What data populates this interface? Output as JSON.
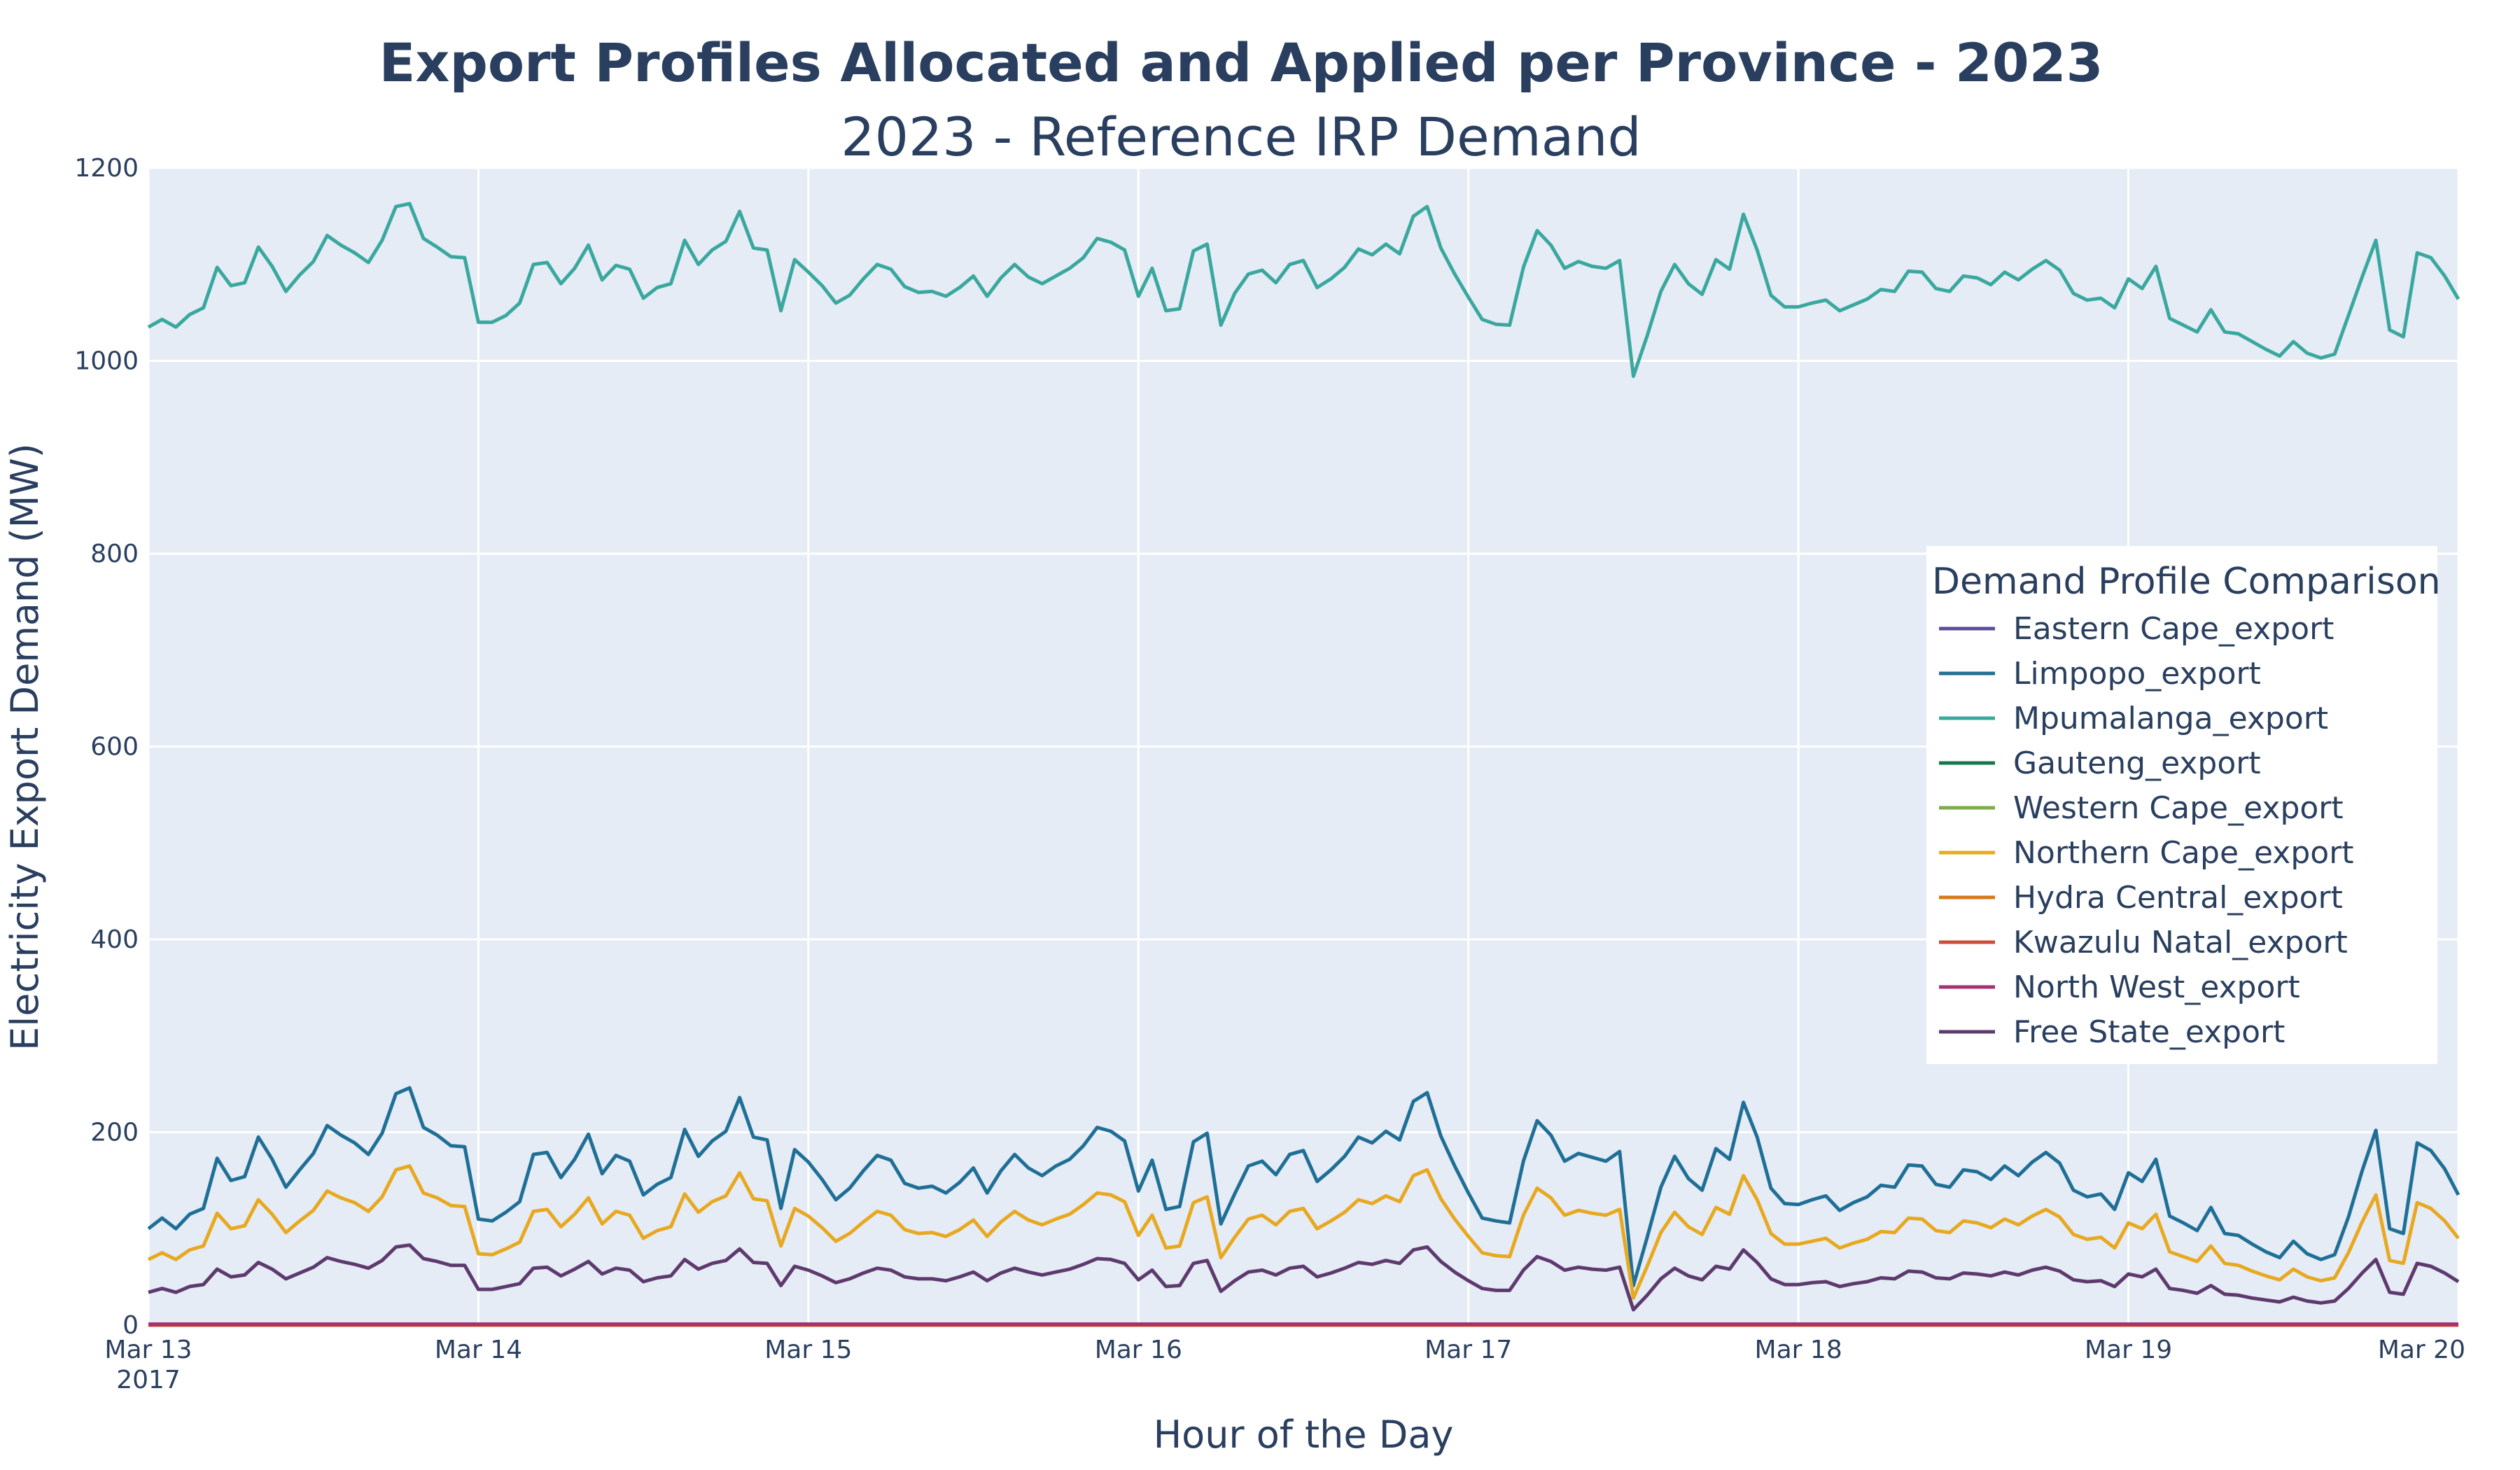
{
  "chart_data": {
    "type": "line",
    "title": "Export Profiles Allocated and Applied per Province - 2023",
    "subtitle": "2023 - Reference IRP Demand",
    "xlabel": "Hour of the Day",
    "ylabel": "Electricity Export Demand (MW)",
    "ylim": [
      0,
      1200
    ],
    "y_ticks": [
      "0",
      "200",
      "400",
      "600",
      "800",
      "1000",
      "1200"
    ],
    "x_range": [
      "2017-03-13",
      "2017-03-20"
    ],
    "x_ticks": [
      {
        "label": "Mar 13",
        "sub": "2017"
      },
      {
        "label": "Mar 14",
        "sub": ""
      },
      {
        "label": "Mar 15",
        "sub": ""
      },
      {
        "label": "Mar 16",
        "sub": ""
      },
      {
        "label": "Mar 17",
        "sub": ""
      },
      {
        "label": "Mar 18",
        "sub": ""
      },
      {
        "label": "Mar 19",
        "sub": ""
      },
      {
        "label": "Mar 20",
        "sub": ""
      }
    ],
    "x_resolution": "2-hourly",
    "grid": true,
    "legend_title": "Demand Profile Comparison",
    "legend_position": "right",
    "plot_background": "#e5ecf6",
    "series": [
      {
        "name": "Eastern Cape_export",
        "color": "#5e4b99",
        "values": [
          0
        ]
      },
      {
        "name": "Limpopo_export",
        "color": "#1f6f96",
        "values": [
          100,
          111,
          100,
          115,
          121,
          173,
          150,
          154,
          195,
          172,
          143,
          161,
          178,
          207,
          197,
          189,
          177,
          199,
          240,
          246,
          205,
          197,
          186,
          185,
          110,
          108,
          117,
          128,
          177,
          179,
          153,
          172,
          198,
          157,
          176,
          170,
          135,
          146,
          153,
          203,
          175,
          191,
          201,
          236,
          195,
          192,
          121,
          182,
          169,
          151,
          130,
          142,
          160,
          176,
          171,
          147,
          142,
          144,
          137,
          148,
          163,
          137,
          160,
          177,
          163,
          155,
          165,
          172,
          186,
          205,
          201,
          191,
          139,
          171,
          120,
          123,
          190,
          199,
          105,
          136,
          165,
          170,
          156,
          177,
          181,
          149,
          161,
          175,
          195,
          189,
          201,
          192,
          232,
          241,
          196,
          165,
          137,
          111,
          108,
          106,
          170,
          212,
          197,
          170,
          178,
          174,
          170,
          180,
          41,
          91,
          143,
          175,
          152,
          140,
          183,
          172,
          231,
          195,
          142,
          126,
          125,
          130,
          134,
          119,
          127,
          133,
          145,
          143,
          166,
          165,
          146,
          143,
          161,
          159,
          151,
          165,
          155,
          169,
          179,
          168,
          140,
          133,
          136,
          120,
          158,
          149,
          172,
          113,
          106,
          98,
          122,
          95,
          93,
          84,
          76,
          70,
          87,
          74,
          68,
          73,
          112,
          160,
          202,
          100,
          95,
          189,
          181,
          162,
          135
        ]
      },
      {
        "name": "Mpumalanga_export",
        "color": "#3aa89f",
        "values": [
          1035,
          1043,
          1035,
          1048,
          1055,
          1097,
          1078,
          1081,
          1118,
          1098,
          1072,
          1089,
          1103,
          1130,
          1120,
          1112,
          1102,
          1125,
          1160,
          1163,
          1127,
          1118,
          1108,
          1107,
          1040,
          1040,
          1047,
          1060,
          1100,
          1102,
          1080,
          1096,
          1120,
          1084,
          1099,
          1095,
          1065,
          1076,
          1080,
          1125,
          1100,
          1115,
          1124,
          1155,
          1117,
          1115,
          1052,
          1105,
          1092,
          1078,
          1060,
          1068,
          1085,
          1100,
          1095,
          1077,
          1071,
          1072,
          1067,
          1076,
          1088,
          1067,
          1086,
          1100,
          1087,
          1080,
          1088,
          1096,
          1107,
          1127,
          1123,
          1115,
          1067,
          1096,
          1052,
          1054,
          1114,
          1121,
          1037,
          1070,
          1090,
          1094,
          1081,
          1100,
          1104,
          1076,
          1085,
          1097,
          1116,
          1110,
          1121,
          1111,
          1150,
          1160,
          1117,
          1090,
          1066,
          1043,
          1038,
          1037,
          1097,
          1135,
          1120,
          1096,
          1103,
          1098,
          1096,
          1104,
          984,
          1026,
          1072,
          1100,
          1080,
          1069,
          1105,
          1095,
          1152,
          1115,
          1068,
          1056,
          1056,
          1060,
          1063,
          1052,
          1058,
          1064,
          1074,
          1072,
          1093,
          1092,
          1075,
          1072,
          1088,
          1086,
          1079,
          1092,
          1084,
          1095,
          1104,
          1094,
          1070,
          1063,
          1065,
          1055,
          1085,
          1075,
          1098,
          1044,
          1037,
          1030,
          1053,
          1030,
          1028,
          1020,
          1012,
          1005,
          1020,
          1008,
          1003,
          1007,
          1047,
          1087,
          1125,
          1032,
          1025,
          1112,
          1107,
          1088,
          1064
        ]
      },
      {
        "name": "Gauteng_export",
        "color": "#13794c",
        "values": [
          0
        ]
      },
      {
        "name": "Western Cape_export",
        "color": "#7bad49",
        "values": [
          0
        ]
      },
      {
        "name": "Northern Cape_export",
        "color": "#e8a81f",
        "values": [
          68,
          75,
          68,
          78,
          82,
          116,
          100,
          103,
          130,
          115,
          96,
          108,
          119,
          139,
          132,
          127,
          118,
          133,
          161,
          165,
          137,
          132,
          124,
          123,
          74,
          73,
          79,
          86,
          118,
          120,
          102,
          115,
          132,
          105,
          118,
          114,
          90,
          98,
          102,
          136,
          117,
          128,
          134,
          158,
          131,
          129,
          82,
          121,
          113,
          101,
          87,
          95,
          107,
          118,
          114,
          99,
          95,
          96,
          92,
          99,
          109,
          92,
          107,
          118,
          109,
          104,
          110,
          115,
          125,
          137,
          135,
          128,
          93,
          114,
          80,
          82,
          127,
          133,
          70,
          91,
          110,
          114,
          104,
          118,
          121,
          100,
          108,
          117,
          130,
          126,
          134,
          128,
          155,
          161,
          131,
          110,
          92,
          75,
          72,
          71,
          114,
          142,
          132,
          114,
          119,
          116,
          114,
          120,
          28,
          61,
          96,
          117,
          102,
          94,
          122,
          115,
          155,
          130,
          95,
          84,
          84,
          87,
          90,
          80,
          85,
          89,
          97,
          96,
          111,
          110,
          98,
          96,
          108,
          106,
          101,
          110,
          104,
          113,
          120,
          112,
          94,
          89,
          91,
          80,
          106,
          100,
          115,
          76,
          71,
          66,
          82,
          64,
          62,
          56,
          51,
          47,
          58,
          50,
          46,
          49,
          75,
          107,
          135,
          67,
          64,
          127,
          121,
          108,
          90
        ]
      },
      {
        "name": "Hydra Central_export",
        "color": "#d8781a",
        "values": [
          0
        ]
      },
      {
        "name": "Kwazulu Natal_export",
        "color": "#cb4e3a",
        "values": [
          0
        ]
      },
      {
        "name": "North West_export",
        "color": "#a7306f",
        "values": [
          1,
          1,
          1,
          1,
          1,
          1,
          1,
          1,
          1,
          1,
          1,
          1,
          1,
          1,
          1,
          1,
          1,
          1,
          1,
          1,
          1,
          1,
          1,
          1,
          1,
          1,
          1,
          1,
          1,
          1,
          1,
          1,
          1,
          1,
          1,
          1,
          1,
          1,
          1,
          1,
          1,
          1,
          1,
          1,
          1,
          1,
          1,
          1,
          1,
          1,
          1,
          1,
          1,
          1,
          1,
          1,
          1,
          1,
          1,
          1,
          1,
          1,
          1,
          1,
          1,
          1,
          1,
          1,
          1,
          1,
          1,
          1,
          1,
          1,
          1,
          1,
          1,
          1,
          1,
          1,
          1,
          1,
          1,
          1,
          1,
          1,
          1,
          1,
          1,
          1,
          1,
          1,
          1,
          1,
          1,
          1,
          1,
          1,
          1,
          1,
          1,
          1,
          1,
          1,
          1,
          1,
          1,
          1,
          1,
          1,
          1,
          1,
          1,
          1,
          1,
          1,
          1,
          1,
          1,
          1,
          1,
          1,
          1,
          1,
          1,
          1,
          1,
          1,
          1,
          1,
          1,
          1,
          1,
          1,
          1,
          1,
          1,
          1,
          1,
          1,
          1,
          1,
          1,
          1,
          1,
          1,
          1,
          1,
          1,
          1,
          1,
          1,
          1,
          1,
          1,
          1,
          1,
          1,
          1,
          1,
          1,
          1,
          1,
          1,
          1,
          1,
          1,
          1,
          1
        ]
      },
      {
        "name": "Free State_export",
        "color": "#5e3a6e",
        "values": [
          34,
          38,
          34,
          40,
          42,
          58,
          50,
          52,
          65,
          58,
          48,
          54,
          60,
          70,
          66,
          63,
          59,
          67,
          81,
          83,
          69,
          66,
          62,
          62,
          37,
          37,
          40,
          43,
          59,
          60,
          51,
          58,
          66,
          53,
          59,
          57,
          45,
          49,
          51,
          68,
          58,
          64,
          67,
          79,
          65,
          64,
          41,
          61,
          57,
          51,
          44,
          48,
          54,
          59,
          57,
          50,
          48,
          48,
          46,
          50,
          55,
          46,
          54,
          59,
          55,
          52,
          55,
          58,
          63,
          69,
          68,
          64,
          47,
          57,
          40,
          41,
          64,
          67,
          35,
          46,
          55,
          57,
          52,
          59,
          61,
          50,
          54,
          59,
          65,
          63,
          67,
          64,
          78,
          81,
          66,
          55,
          46,
          38,
          36,
          36,
          57,
          71,
          66,
          57,
          60,
          58,
          57,
          60,
          16,
          31,
          48,
          59,
          51,
          47,
          61,
          58,
          78,
          65,
          48,
          42,
          42,
          44,
          45,
          40,
          43,
          45,
          49,
          48,
          56,
          55,
          49,
          48,
          54,
          53,
          51,
          55,
          52,
          57,
          60,
          56,
          47,
          45,
          46,
          40,
          53,
          50,
          58,
          38,
          36,
          33,
          41,
          32,
          31,
          28,
          26,
          24,
          29,
          25,
          23,
          25,
          38,
          54,
          68,
          34,
          32,
          64,
          61,
          54,
          45
        ]
      }
    ]
  }
}
